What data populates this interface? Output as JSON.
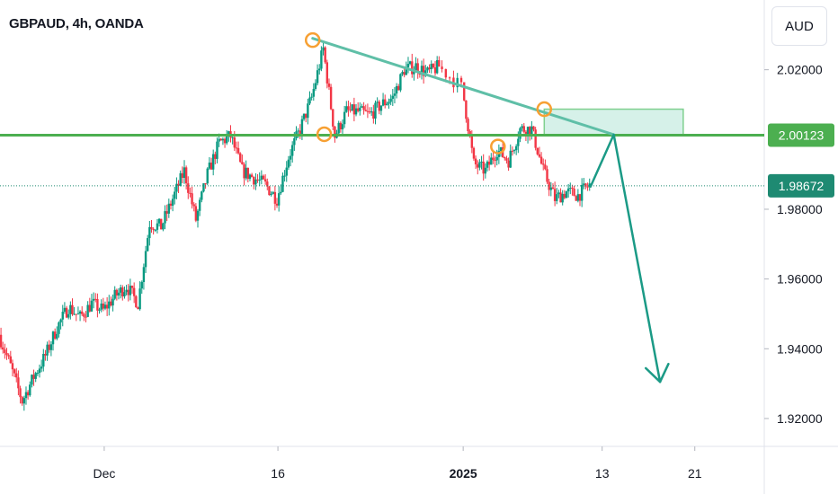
{
  "header": {
    "symbol_title": "GBPAUD, 4h, OANDA",
    "currency_label": "AUD"
  },
  "colors": {
    "up_candle": "#089981",
    "down_candle": "#f23645",
    "support_line": "#4caf50",
    "trend_line": "#5fbfa7",
    "zone_fill": "#cfeee5",
    "zone_border": "#7fd08f",
    "arrow": "#1b9a86",
    "marker_circle": "#f7a033",
    "price_badge": "#1e8a72",
    "level_badge": "#4caf50"
  },
  "chart_data": {
    "type": "candlestick",
    "symbol": "GBPAUD",
    "timeframe": "4h",
    "source": "OANDA",
    "currency": "AUD",
    "ylim": [
      1.912,
      2.04
    ],
    "y_ticks": [
      "2.02000",
      "1.98000",
      "1.96000",
      "1.94000",
      "1.92000"
    ],
    "x_range": [
      "2024-11-22",
      "2025-01-27"
    ],
    "x_ticks": [
      {
        "label": "Dec",
        "date": "2024-12-01",
        "bold": false
      },
      {
        "label": "16",
        "date": "2024-12-16",
        "bold": false
      },
      {
        "label": "2025",
        "date": "2025-01-01",
        "bold": true
      },
      {
        "label": "13",
        "date": "2025-01-13",
        "bold": false
      },
      {
        "label": "21",
        "date": "2025-01-21",
        "bold": false
      }
    ],
    "price_path": [
      [
        "2024-11-22",
        1.944
      ],
      [
        "2024-11-23",
        1.935
      ],
      [
        "2024-11-24",
        1.925
      ],
      [
        "2024-11-25",
        1.932
      ],
      [
        "2024-11-26",
        1.938
      ],
      [
        "2024-11-27",
        1.946
      ],
      [
        "2024-11-28",
        1.952
      ],
      [
        "2024-11-29",
        1.949
      ],
      [
        "2024-11-30",
        1.953
      ],
      [
        "2024-12-01",
        1.951
      ],
      [
        "2024-12-02",
        1.955
      ],
      [
        "2024-12-03",
        1.958
      ],
      [
        "2024-12-04",
        1.953
      ],
      [
        "2024-12-05",
        1.976
      ],
      [
        "2024-12-06",
        1.975
      ],
      [
        "2024-12-07",
        1.983
      ],
      [
        "2024-12-08",
        1.991
      ],
      [
        "2024-12-09",
        1.977
      ],
      [
        "2024-12-10",
        1.99
      ],
      [
        "2024-12-11",
        1.999
      ],
      [
        "2024-12-12",
        2.001
      ],
      [
        "2024-12-13",
        1.991
      ],
      [
        "2024-12-14",
        1.989
      ],
      [
        "2024-12-15",
        1.987
      ],
      [
        "2024-12-16",
        1.983
      ],
      [
        "2024-12-17",
        1.995
      ],
      [
        "2024-12-18",
        2.003
      ],
      [
        "2024-12-19",
        2.012
      ],
      [
        "2024-12-20",
        2.026
      ],
      [
        "2024-12-21",
        2.001
      ],
      [
        "2024-12-22",
        2.008
      ],
      [
        "2024-12-23",
        2.008
      ],
      [
        "2024-12-24",
        2.007
      ],
      [
        "2024-12-25",
        2.01
      ],
      [
        "2024-12-26",
        2.012
      ],
      [
        "2024-12-27",
        2.02
      ],
      [
        "2024-12-28",
        2.021
      ],
      [
        "2024-12-29",
        2.019
      ],
      [
        "2024-12-30",
        2.021
      ],
      [
        "2025-01-01",
        2.015
      ],
      [
        "2025-01-02",
        1.993
      ],
      [
        "2025-01-03",
        1.991
      ],
      [
        "2025-01-04",
        1.997
      ],
      [
        "2025-01-05",
        1.994
      ],
      [
        "2025-01-06",
        2.003
      ],
      [
        "2025-01-07",
        2.003
      ],
      [
        "2025-01-08",
        1.991
      ],
      [
        "2025-01-09",
        1.983
      ],
      [
        "2025-01-10",
        1.985
      ],
      [
        "2025-01-11",
        1.984
      ],
      [
        "2025-01-12",
        1.987
      ]
    ],
    "current_price": "1.98672",
    "current_value": 1.98672,
    "key_level": "2.00123",
    "key_level_value": 2.00123,
    "trend_line": [
      [
        "2024-12-19",
        2.029
      ],
      [
        "2025-01-14",
        2.0014
      ]
    ],
    "supply_zone": {
      "from": "2025-01-08",
      "to": "2025-01-20",
      "high": 2.0087,
      "low": 2.0012
    },
    "swing_markers": [
      [
        "2024-12-19",
        2.0285
      ],
      [
        "2024-12-20",
        2.0015
      ],
      [
        "2025-01-04",
        1.998
      ],
      [
        "2025-01-08",
        2.0087
      ]
    ],
    "projection": [
      [
        "2025-01-12",
        1.9865
      ],
      [
        "2025-01-14",
        2.0014
      ],
      [
        "2025-01-18",
        1.9305
      ]
    ]
  }
}
